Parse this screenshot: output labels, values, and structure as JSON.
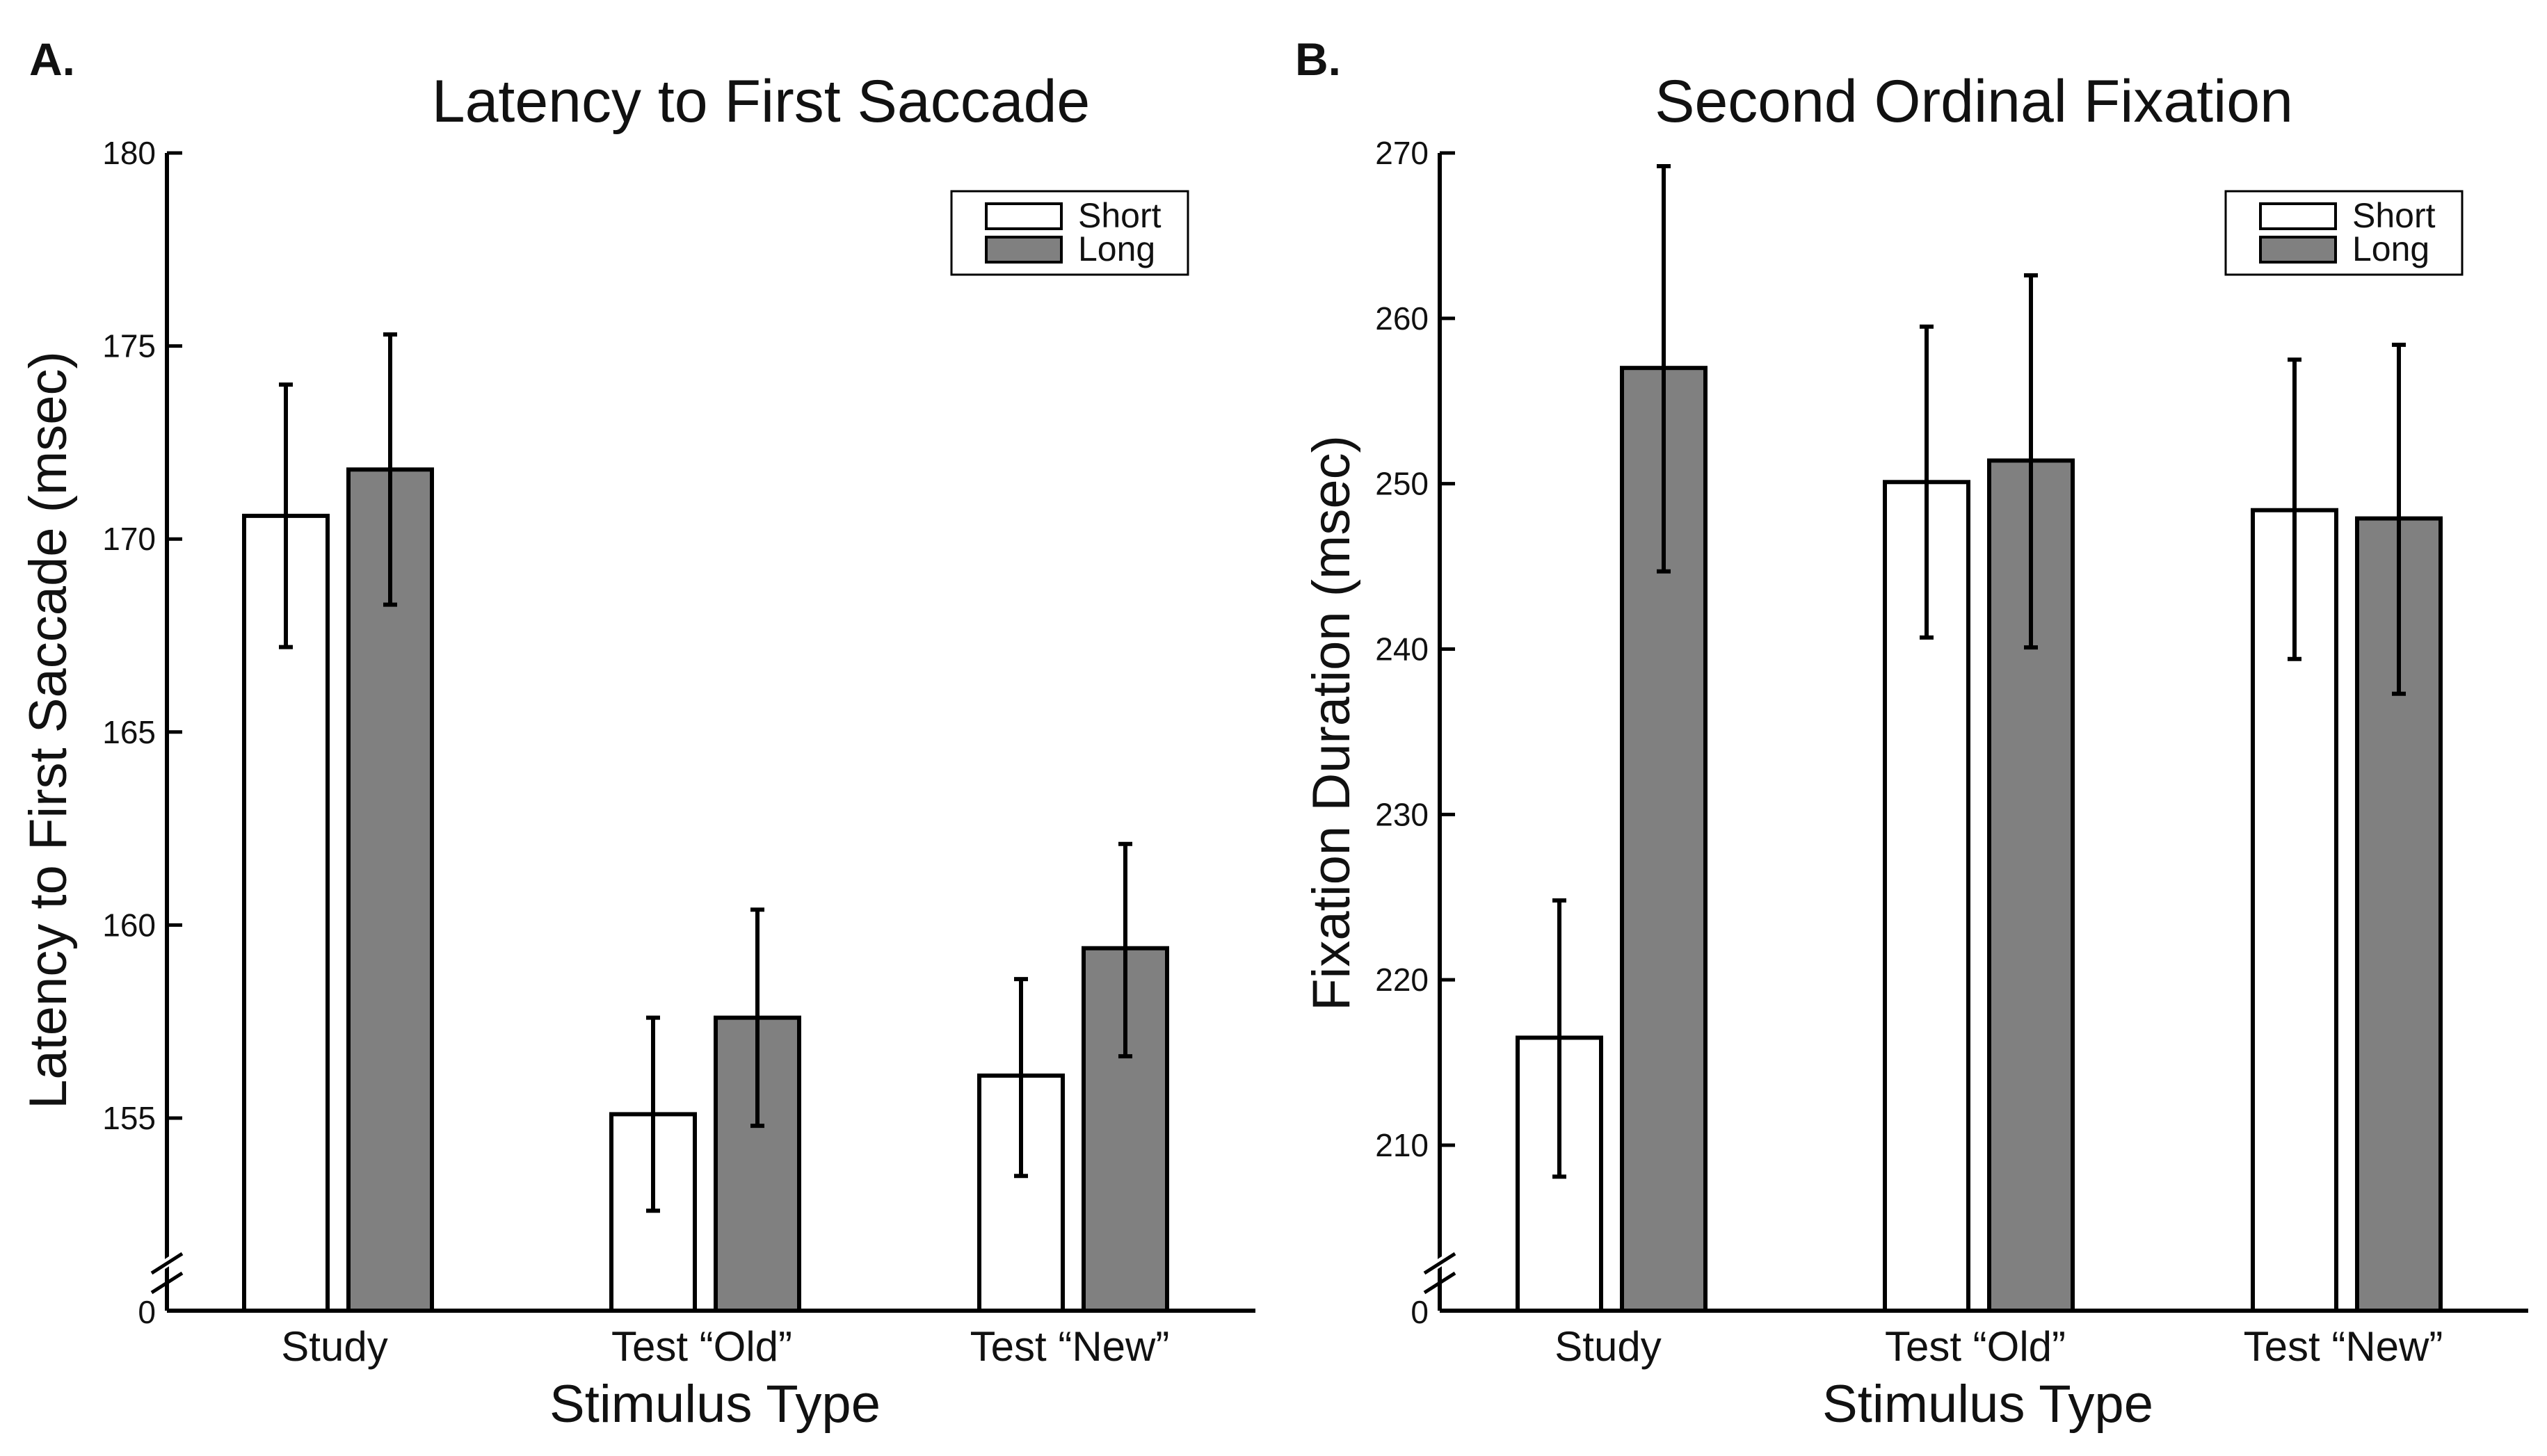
{
  "chart_data": [
    {
      "type": "bar",
      "panel_label": "A.",
      "title": "Latency to First Saccade",
      "xlabel": "Stimulus Type",
      "ylabel": "Latency to First Saccade (msec)",
      "categories": [
        "Study",
        "Test “Old”",
        "Test “New”"
      ],
      "ylim": [
        150,
        180
      ],
      "yticks": [
        155,
        160,
        165,
        170,
        175,
        180
      ],
      "axis_break": true,
      "axis_break_label": "0",
      "legend_position": "top-right",
      "series": [
        {
          "name": "Short",
          "color": "#ffffff",
          "values": [
            170.6,
            155.1,
            156.1
          ],
          "err_low": [
            167.2,
            152.6,
            153.5
          ],
          "err_high": [
            174.0,
            157.6,
            158.6
          ]
        },
        {
          "name": "Long",
          "color": "#808080",
          "values": [
            171.8,
            157.6,
            159.4
          ],
          "err_low": [
            168.3,
            154.8,
            156.6
          ],
          "err_high": [
            175.3,
            160.4,
            162.1
          ]
        }
      ]
    },
    {
      "type": "bar",
      "panel_label": "B.",
      "title": "Second Ordinal Fixation",
      "xlabel": "Stimulus Type",
      "ylabel": "Fixation Duration (msec)",
      "categories": [
        "Study",
        "Test “Old”",
        "Test “New”"
      ],
      "ylim": [
        200,
        270
      ],
      "yticks": [
        210,
        220,
        230,
        240,
        250,
        260,
        270
      ],
      "axis_break": true,
      "axis_break_label": "0",
      "legend_position": "top-right",
      "series": [
        {
          "name": "Short",
          "color": "#ffffff",
          "values": [
            216.5,
            250.1,
            248.4
          ],
          "err_low": [
            208.1,
            240.7,
            239.4
          ],
          "err_high": [
            224.8,
            259.5,
            257.5
          ]
        },
        {
          "name": "Long",
          "color": "#808080",
          "values": [
            257.0,
            251.4,
            247.9
          ],
          "err_low": [
            244.7,
            240.1,
            237.3
          ],
          "err_high": [
            269.2,
            262.6,
            258.4
          ]
        }
      ]
    }
  ]
}
